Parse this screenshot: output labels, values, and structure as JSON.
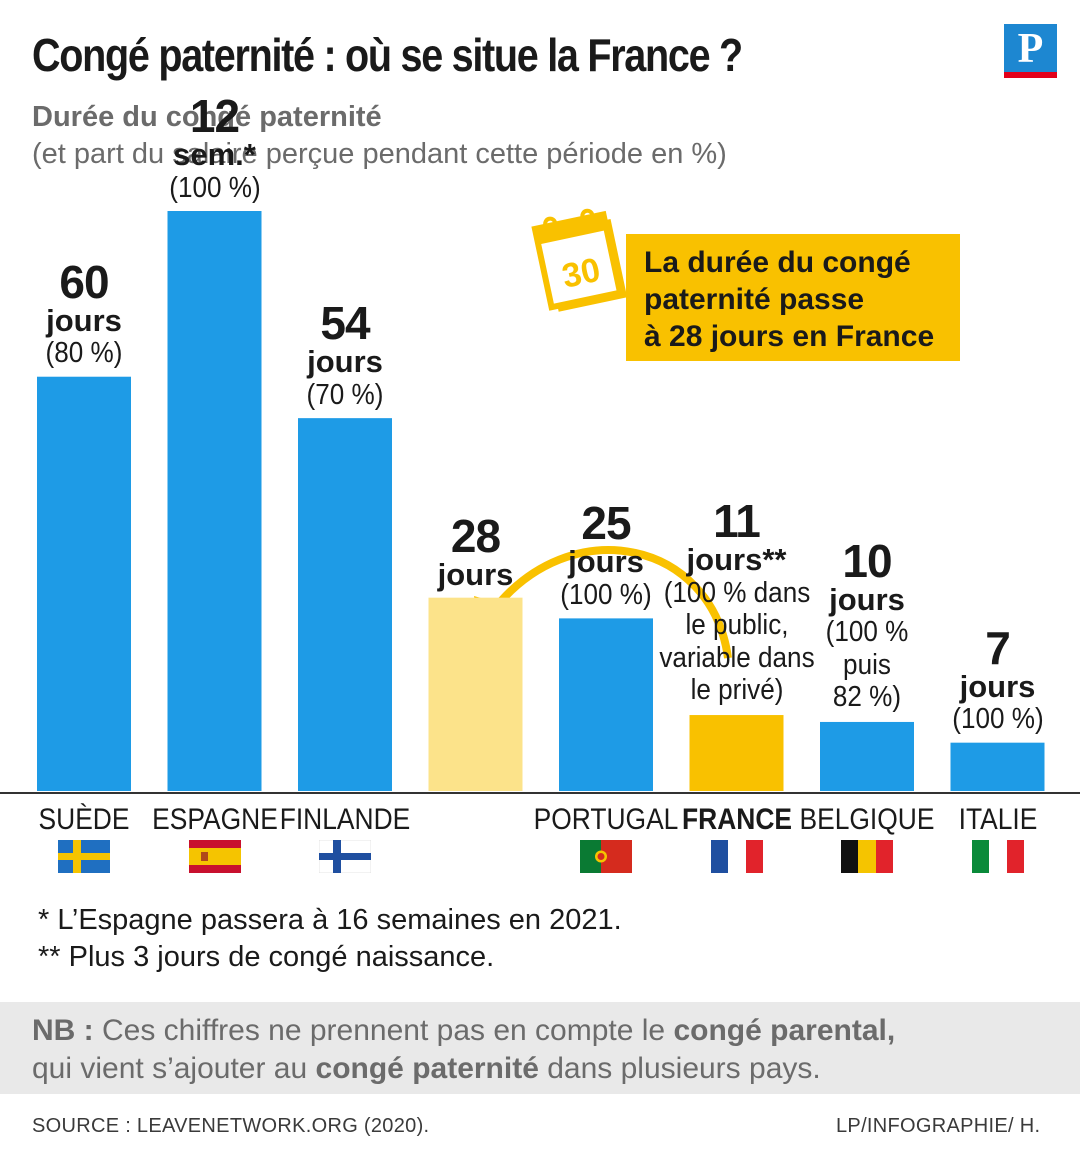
{
  "title": "Congé paternité : où se situe la France ?",
  "subtitle": "Durée du congé paternité",
  "subtitle2": "(et part du salaire perçue pendant cette période en %)",
  "logo_letter": "P",
  "callout": {
    "calendar_number": "30",
    "lines": [
      "La durée du congé",
      "paternité passe",
      "à 28 jours en France"
    ]
  },
  "chart_data": {
    "type": "bar",
    "title": "Durée du congé paternité",
    "unit": "jours",
    "categories": [
      "SUÈDE",
      "ESPAGNE",
      "FINLANDE",
      "",
      "PORTUGAL",
      "FRANCE",
      "BELGIQUE",
      "ITALIE"
    ],
    "values": [
      60,
      84,
      54,
      28,
      25,
      11,
      10,
      7
    ],
    "labels": [
      {
        "num": "60",
        "unit": "jours",
        "pct": [
          "(80 %)"
        ]
      },
      {
        "num": "12",
        "unit": "sem.*",
        "pct": [
          "(100 %)"
        ]
      },
      {
        "num": "54",
        "unit": "jours",
        "pct": [
          "(70 %)"
        ]
      },
      {
        "num": "28",
        "unit": "jours",
        "pct": []
      },
      {
        "num": "25",
        "unit": "jours",
        "pct": [
          "(100 %)"
        ]
      },
      {
        "num": "11",
        "unit": "jours**",
        "pct": [
          "(100 % dans",
          "le public,",
          "variable dans",
          "le privé)"
        ]
      },
      {
        "num": "10",
        "unit": "jours",
        "pct": [
          "(100 %",
          "puis",
          "82 %)"
        ]
      },
      {
        "num": "7",
        "unit": "jours",
        "pct": [
          "(100 %)"
        ]
      }
    ],
    "colors": [
      "#1e9be6",
      "#1e9be6",
      "#1e9be6",
      "#fce38a",
      "#1e9be6",
      "#f9c100",
      "#1e9be6",
      "#1e9be6"
    ],
    "highlight": "FRANCE",
    "ylim": [
      0,
      84
    ],
    "grid": false,
    "legend": "none"
  },
  "flags": [
    "sweden-flag",
    "spain-flag",
    "finland-flag",
    "",
    "portugal-flag",
    "france-flag",
    "belgium-flag",
    "italy-flag"
  ],
  "notes": [
    "* L’Espagne passera à 16 semaines en 2021.",
    "** Plus 3 jours de congé naissance."
  ],
  "nb": {
    "prefix": "NB :",
    "line1_a": " Ces chiffres ne prennent pas en compte le ",
    "line1_b": "congé parental,",
    "line2_a": "qui vient s’ajouter au ",
    "line2_b": "congé paternité",
    "line2_c": " dans plusieurs pays."
  },
  "source": "SOURCE : LEAVENETWORK.ORG (2020).",
  "credit": "LP/INFOGRAPHIE/ H."
}
